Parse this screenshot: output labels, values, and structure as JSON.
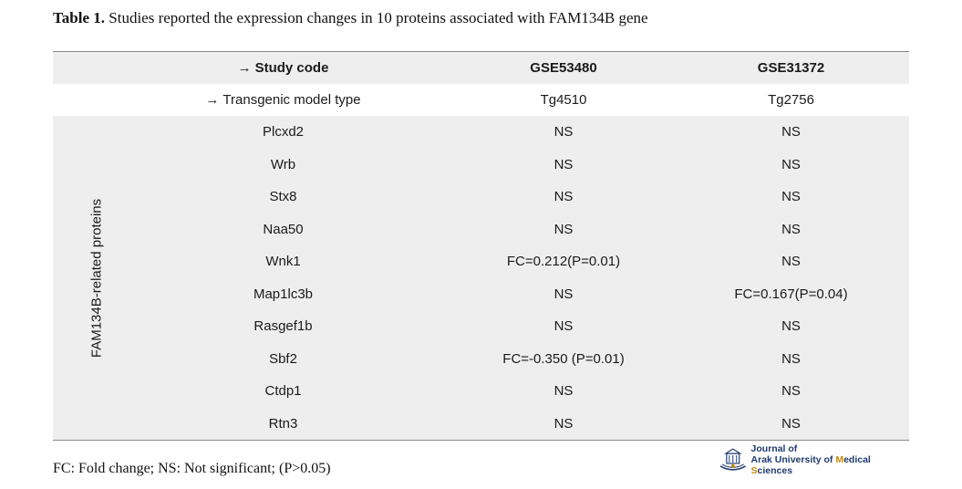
{
  "caption": {
    "label": "Table 1.",
    "text": "Studies reported the expression changes in 10 proteins associated with FAM134B gene"
  },
  "table": {
    "header1": {
      "arrow": "→",
      "label": "Study code",
      "col2": "GSE53480",
      "col3": "GSE31372"
    },
    "header2": {
      "arrow": "→",
      "label": "Transgenic model type",
      "col2": "Tg4510",
      "col3": "Tg2756"
    },
    "group_label": "FAM134B-related proteins",
    "rows": [
      {
        "protein": "Plcxd2",
        "gse53480": "NS",
        "gse31372": "NS"
      },
      {
        "protein": "Wrb",
        "gse53480": "NS",
        "gse31372": "NS"
      },
      {
        "protein": "Stx8",
        "gse53480": "NS",
        "gse31372": "NS"
      },
      {
        "protein": "Naa50",
        "gse53480": "NS",
        "gse31372": "NS"
      },
      {
        "protein": "Wnk1",
        "gse53480": "FC=0.212(P=0.01)",
        "gse31372": "NS"
      },
      {
        "protein": "Map1lc3b",
        "gse53480": "NS",
        "gse31372": "FC=0.167(P=0.04)"
      },
      {
        "protein": "Rasgef1b",
        "gse53480": "NS",
        "gse31372": "NS"
      },
      {
        "protein": "Sbf2",
        "gse53480": "FC=-0.350 (P=0.01)",
        "gse31372": "NS"
      },
      {
        "protein": "Ctdp1",
        "gse53480": "NS",
        "gse31372": "NS"
      },
      {
        "protein": "Rtn3",
        "gse53480": "NS",
        "gse31372": "NS"
      }
    ]
  },
  "footnote": "FC: Fold change; NS: Not significant; (P>0.05)",
  "logo": {
    "line1": "Journal of",
    "line2_a": "Arak University of ",
    "line2_m": "M",
    "line2_b": "edical ",
    "line2_s": "S",
    "line2_c": "ciences",
    "icon": "journal-emblem-icon"
  }
}
